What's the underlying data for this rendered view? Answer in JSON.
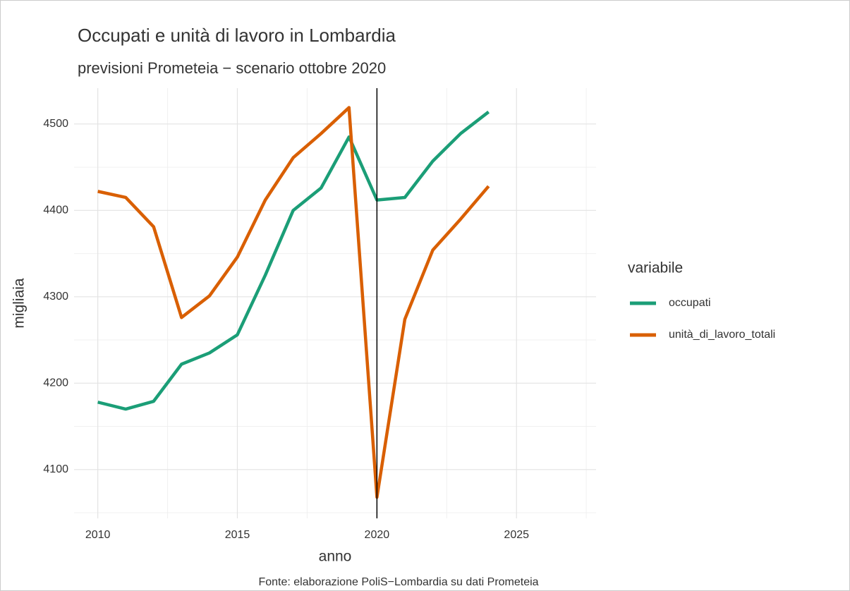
{
  "chart_data": {
    "type": "line",
    "title": "Occupati e unità di lavoro in Lombardia",
    "subtitle": "previsioni Prometeia − scenario ottobre 2020",
    "x_label": "anno",
    "y_label": "migliaia",
    "caption": "Fonte: elaborazione PoliS−Lombardia su dati Prometeia",
    "legend_title": "variabile",
    "legend_position": "right",
    "x": [
      2010,
      2011,
      2012,
      2013,
      2014,
      2015,
      2016,
      2017,
      2018,
      2019,
      2020,
      2021,
      2022,
      2023,
      2024
    ],
    "series": [
      {
        "name": "occupati",
        "color": "#1b9e77",
        "values": [
          4178,
          4170,
          4179,
          4222,
          4235,
          4256,
          4325,
          4400,
          4426,
          4485,
          4412,
          4415,
          4457,
          4489,
          4514
        ]
      },
      {
        "name": "unità_di_lavoro_totali",
        "color": "#d95f02",
        "values": [
          4422,
          4415,
          4381,
          4276,
          4301,
          4346,
          4412,
          4461,
          4489,
          4519,
          4068,
          4274,
          4354,
          4390,
          4428
        ]
      }
    ],
    "vline": 2020,
    "xlim": [
      2009.15,
      2027.85
    ],
    "xticks": [
      2010,
      2015,
      2020,
      2025
    ],
    "ylim": [
      4043.5,
      4541.5
    ],
    "yticks": [
      4100,
      4200,
      4300,
      4400,
      4500
    ],
    "grid": true
  }
}
